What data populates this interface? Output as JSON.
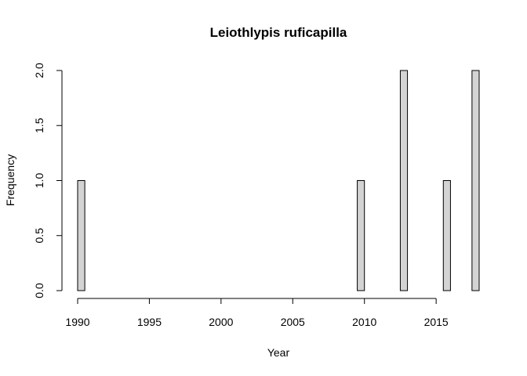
{
  "chart_data": {
    "type": "bar",
    "title": "Leiothlypis ruficapilla",
    "xlabel": "Year",
    "ylabel": "Frequency",
    "bin_width": 0.5,
    "x": [
      1990.0,
      1990.5,
      1991.0,
      1991.5,
      1992.0,
      1992.5,
      1993.0,
      1993.5,
      1994.0,
      1994.5,
      1995.0,
      1995.5,
      1996.0,
      1996.5,
      1997.0,
      1997.5,
      1998.0,
      1998.5,
      1999.0,
      1999.5,
      2000.0,
      2000.5,
      2001.0,
      2001.5,
      2002.0,
      2002.5,
      2003.0,
      2003.5,
      2004.0,
      2004.5,
      2005.0,
      2005.5,
      2006.0,
      2006.5,
      2007.0,
      2007.5,
      2008.0,
      2008.5,
      2009.0,
      2009.5,
      2010.0,
      2010.5,
      2011.0,
      2011.5,
      2012.0,
      2012.5,
      2013.0,
      2013.5,
      2014.0,
      2014.5,
      2015.0,
      2015.5,
      2016.0,
      2016.5,
      2017.0,
      2017.5
    ],
    "values": [
      1,
      0,
      0,
      0,
      0,
      0,
      0,
      0,
      0,
      0,
      0,
      0,
      0,
      0,
      0,
      0,
      0,
      0,
      0,
      0,
      0,
      0,
      0,
      0,
      0,
      0,
      0,
      0,
      0,
      0,
      0,
      0,
      0,
      0,
      0,
      0,
      0,
      0,
      0,
      1,
      0,
      0,
      0,
      0,
      0,
      2,
      0,
      0,
      0,
      0,
      0,
      1,
      0,
      0,
      0,
      2
    ],
    "xlim": [
      1990,
      2018
    ],
    "ylim": [
      0,
      2
    ],
    "xticks": [
      1990,
      1995,
      2000,
      2005,
      2010,
      2015
    ],
    "yticks": [
      "0.0",
      "0.5",
      "1.0",
      "1.5",
      "2.0"
    ],
    "bar_fill": "#d3d3d3",
    "bar_stroke": "#000000",
    "grid": false,
    "legend": "none"
  }
}
